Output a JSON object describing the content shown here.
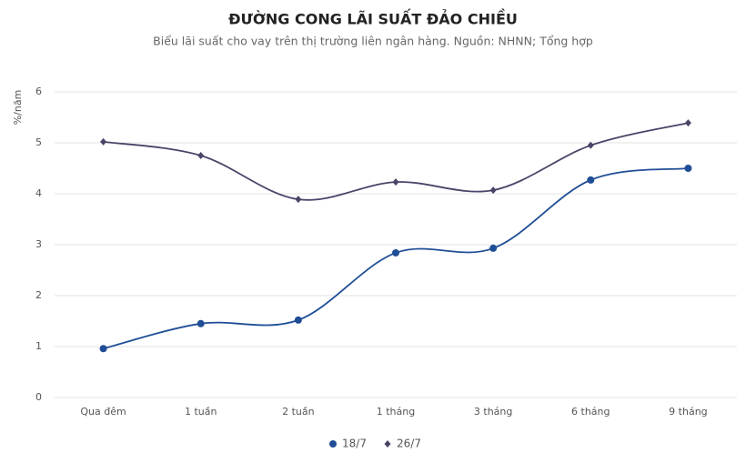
{
  "chart_data": {
    "type": "line",
    "title": "ĐƯỜNG CONG LÃI SUẤT ĐẢO CHIỀU",
    "subtitle": "Biểu lãi suất cho vay trên thị trường liên ngân hàng. Nguồn: NHNN; Tổng hợp",
    "y_label": "%/năm",
    "categories": [
      "Qua đêm",
      "1 tuần",
      "2 tuần",
      "1 tháng",
      "3 tháng",
      "6 tháng",
      "9 tháng"
    ],
    "series": [
      {
        "name": "18/7",
        "color": "#1f4e96",
        "values": [
          0.96,
          1.45,
          1.52,
          2.84,
          2.93,
          4.27,
          4.5
        ]
      },
      {
        "name": "26/7",
        "color": "#4a4468",
        "values": [
          5.02,
          4.75,
          3.89,
          4.23,
          4.07,
          4.95,
          5.39
        ]
      }
    ],
    "ylim": [
      0,
      6
    ],
    "yticks": [
      0,
      1,
      2,
      3,
      4,
      5,
      6
    ],
    "grid": true,
    "legend": "bottom"
  }
}
